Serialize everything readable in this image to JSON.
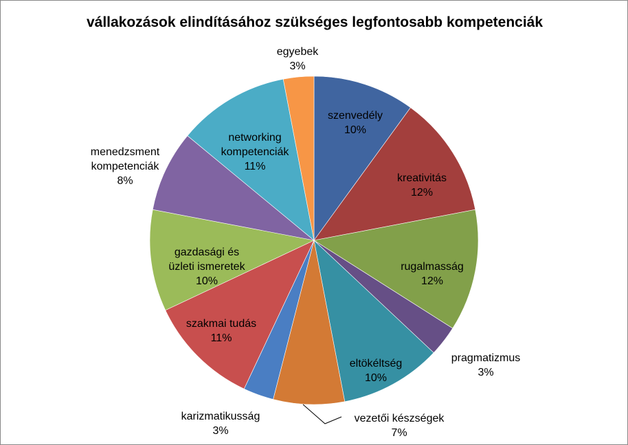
{
  "chart_data": {
    "type": "pie",
    "title": "vállakozások elindításához szükséges legfontosabb kompetenciák",
    "start_angle_deg": 0,
    "direction": "clockwise",
    "slices": [
      {
        "label": [
          "szenvedély"
        ],
        "value": 10,
        "pct_label": "10%",
        "color": "#4065A0",
        "label_inside": true
      },
      {
        "label": [
          "kreativitás"
        ],
        "value": 12,
        "pct_label": "12%",
        "color": "#A33F3D",
        "label_inside": true
      },
      {
        "label": [
          "rugalmasság"
        ],
        "value": 12,
        "pct_label": "12%",
        "color": "#82A04A",
        "label_inside": true
      },
      {
        "label": [
          "pragmatizmus"
        ],
        "value": 3,
        "pct_label": "3%",
        "color": "#664F86",
        "label_inside": false
      },
      {
        "label": [
          "eltökéltség"
        ],
        "value": 10,
        "pct_label": "10%",
        "color": "#3690A3",
        "label_inside": true
      },
      {
        "label": [
          "vezetői készségek"
        ],
        "value": 7,
        "pct_label": "7%",
        "color": "#D37A35",
        "label_inside": false
      },
      {
        "label": [
          "karizmatikusság"
        ],
        "value": 3,
        "pct_label": "3%",
        "color": "#4A7EC3",
        "label_inside": false
      },
      {
        "label": [
          "szakmai tudás"
        ],
        "value": 11,
        "pct_label": "11%",
        "color": "#C84F4E",
        "label_inside": true
      },
      {
        "label": [
          "gazdasági és",
          "üzleti ismeretek"
        ],
        "value": 10,
        "pct_label": "10%",
        "color": "#9BBB59",
        "label_inside": true
      },
      {
        "label": [
          "menedzsment",
          "kompetenciák"
        ],
        "value": 8,
        "pct_label": "8%",
        "color": "#8064A2",
        "label_inside": false
      },
      {
        "label": [
          "networking",
          "kompetenciák"
        ],
        "value": 11,
        "pct_label": "11%",
        "color": "#4BACC6",
        "label_inside": true
      },
      {
        "label": [
          "egyebek"
        ],
        "value": 3,
        "pct_label": "3%",
        "color": "#F79646",
        "label_inside": false
      }
    ]
  }
}
